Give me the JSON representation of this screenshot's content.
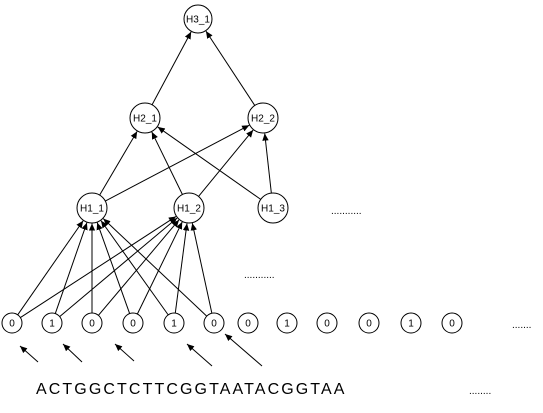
{
  "nodes": [
    {
      "id": "H3_1",
      "label": "H3_1"
    },
    {
      "id": "H2_1",
      "label": "H2_1"
    },
    {
      "id": "H2_2",
      "label": "H2_2"
    },
    {
      "id": "H1_1",
      "label": "H1_1"
    },
    {
      "id": "H1_2",
      "label": "H1_2"
    },
    {
      "id": "H1_3",
      "label": "H1_3"
    },
    {
      "id": "b0",
      "label": "0"
    },
    {
      "id": "b1",
      "label": "1"
    },
    {
      "id": "b2",
      "label": "0"
    },
    {
      "id": "b3",
      "label": "0"
    },
    {
      "id": "b4",
      "label": "1"
    },
    {
      "id": "b5",
      "label": "0"
    },
    {
      "id": "b6",
      "label": "0"
    },
    {
      "id": "b7",
      "label": "1"
    },
    {
      "id": "b8",
      "label": "0"
    },
    {
      "id": "b9",
      "label": "0"
    },
    {
      "id": "b10",
      "label": "1"
    },
    {
      "id": "b11",
      "label": "0"
    }
  ],
  "edges": [
    {
      "from": "H2_1",
      "to": "H3_1"
    },
    {
      "from": "H2_2",
      "to": "H3_1"
    },
    {
      "from": "H1_1",
      "to": "H2_1"
    },
    {
      "from": "H1_1",
      "to": "H2_2"
    },
    {
      "from": "H1_2",
      "to": "H2_1"
    },
    {
      "from": "H1_2",
      "to": "H2_2"
    },
    {
      "from": "H1_3",
      "to": "H2_1"
    },
    {
      "from": "H1_3",
      "to": "H2_2"
    },
    {
      "from": "b0",
      "to": "H1_1"
    },
    {
      "from": "b1",
      "to": "H1_1"
    },
    {
      "from": "b2",
      "to": "H1_1"
    },
    {
      "from": "b3",
      "to": "H1_1"
    },
    {
      "from": "b4",
      "to": "H1_1"
    },
    {
      "from": "b5",
      "to": "H1_1"
    },
    {
      "from": "b0",
      "to": "H1_2"
    },
    {
      "from": "b1",
      "to": "H1_2"
    },
    {
      "from": "b2",
      "to": "H1_2"
    },
    {
      "from": "b3",
      "to": "H1_2"
    },
    {
      "from": "b4",
      "to": "H1_2"
    },
    {
      "from": "b5",
      "to": "H1_2"
    }
  ],
  "ellipses": {
    "hidden_row": "...........",
    "mid_row": "...........",
    "bits_row": ".......",
    "sequence_row": "........"
  },
  "sequence": "ACTGGCTCTTCGGTAATACGGTAA",
  "colors": {
    "stroke": "#000000",
    "background": "#ffffff"
  }
}
